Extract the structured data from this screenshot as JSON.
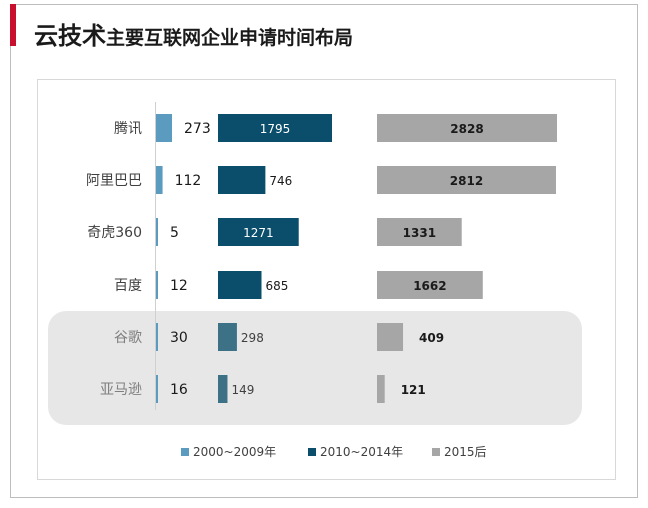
{
  "header": {
    "title_big": "云技术",
    "title_small": "主要互联网企业申请时间布局"
  },
  "chart_data": {
    "type": "bar",
    "categories": [
      "腾讯",
      "阿里巴巴",
      "奇虎360",
      "百度",
      "谷歌",
      "亚马逊"
    ],
    "highlighted_categories": [
      "谷歌",
      "亚马逊"
    ],
    "series": [
      {
        "name": "2000~2009年",
        "color": "#5b9bc0",
        "values": [
          273,
          112,
          5,
          12,
          30,
          16
        ]
      },
      {
        "name": "2010~2014年",
        "color": "#0b4e6b",
        "highlight_color": "#3d7186",
        "values": [
          1795,
          746,
          1271,
          685,
          298,
          149
        ]
      },
      {
        "name": "2015后",
        "color": "#a6a6a6",
        "values": [
          2828,
          2812,
          1331,
          1662,
          409,
          121
        ]
      }
    ],
    "legend_position": "bottom",
    "grid": false
  }
}
